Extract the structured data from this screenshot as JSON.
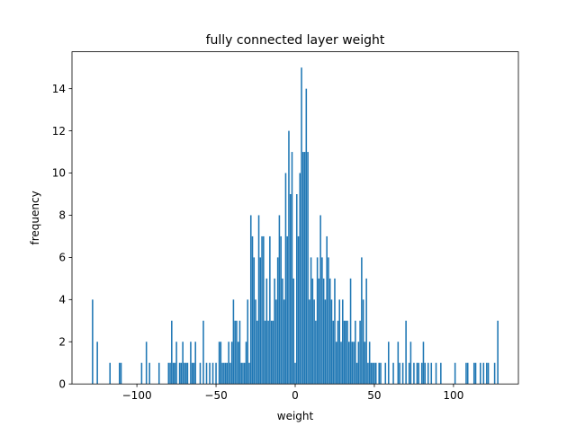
{
  "chart_data": {
    "type": "bar",
    "title": "fully connected layer weight",
    "xlabel": "weight",
    "ylabel": "frequency",
    "xlim": [
      -141,
      141
    ],
    "ylim": [
      0,
      15.75
    ],
    "xticks": [
      -100,
      -50,
      0,
      50,
      100
    ],
    "yticks": [
      0,
      2,
      4,
      6,
      8,
      10,
      12,
      14
    ],
    "bar_color": "#1f77b4",
    "bin_width": 1,
    "bins": [
      {
        "x": -128,
        "count": 4
      },
      {
        "x": -125,
        "count": 2
      },
      {
        "x": -117,
        "count": 1
      },
      {
        "x": -111,
        "count": 1
      },
      {
        "x": -110,
        "count": 1
      },
      {
        "x": -97,
        "count": 1
      },
      {
        "x": -94,
        "count": 2
      },
      {
        "x": -92,
        "count": 1
      },
      {
        "x": -86,
        "count": 1
      },
      {
        "x": -80,
        "count": 1
      },
      {
        "x": -79,
        "count": 1
      },
      {
        "x": -78,
        "count": 3
      },
      {
        "x": -77,
        "count": 1
      },
      {
        "x": -76,
        "count": 1
      },
      {
        "x": -75,
        "count": 2
      },
      {
        "x": -73,
        "count": 1
      },
      {
        "x": -72,
        "count": 1
      },
      {
        "x": -71,
        "count": 2
      },
      {
        "x": -70,
        "count": 1
      },
      {
        "x": -69,
        "count": 1
      },
      {
        "x": -68,
        "count": 1
      },
      {
        "x": -66,
        "count": 2
      },
      {
        "x": -65,
        "count": 1
      },
      {
        "x": -64,
        "count": 1
      },
      {
        "x": -63,
        "count": 2
      },
      {
        "x": -60,
        "count": 1
      },
      {
        "x": -58,
        "count": 3
      },
      {
        "x": -56,
        "count": 1
      },
      {
        "x": -54,
        "count": 1
      },
      {
        "x": -52,
        "count": 1
      },
      {
        "x": -50,
        "count": 1
      },
      {
        "x": -48,
        "count": 2
      },
      {
        "x": -47,
        "count": 2
      },
      {
        "x": -46,
        "count": 1
      },
      {
        "x": -45,
        "count": 1
      },
      {
        "x": -44,
        "count": 1
      },
      {
        "x": -43,
        "count": 1
      },
      {
        "x": -42,
        "count": 2
      },
      {
        "x": -41,
        "count": 1
      },
      {
        "x": -40,
        "count": 2
      },
      {
        "x": -39,
        "count": 4
      },
      {
        "x": -38,
        "count": 3
      },
      {
        "x": -37,
        "count": 3
      },
      {
        "x": -36,
        "count": 2
      },
      {
        "x": -35,
        "count": 3
      },
      {
        "x": -34,
        "count": 1
      },
      {
        "x": -33,
        "count": 1
      },
      {
        "x": -32,
        "count": 1
      },
      {
        "x": -31,
        "count": 2
      },
      {
        "x": -30,
        "count": 4
      },
      {
        "x": -29,
        "count": 1
      },
      {
        "x": -28,
        "count": 8
      },
      {
        "x": -27,
        "count": 7
      },
      {
        "x": -26,
        "count": 6
      },
      {
        "x": -25,
        "count": 4
      },
      {
        "x": -24,
        "count": 3
      },
      {
        "x": -23,
        "count": 8
      },
      {
        "x": -22,
        "count": 6
      },
      {
        "x": -21,
        "count": 7
      },
      {
        "x": -20,
        "count": 7
      },
      {
        "x": -19,
        "count": 3
      },
      {
        "x": -18,
        "count": 5
      },
      {
        "x": -17,
        "count": 3
      },
      {
        "x": -16,
        "count": 7
      },
      {
        "x": -15,
        "count": 3
      },
      {
        "x": -14,
        "count": 3
      },
      {
        "x": -13,
        "count": 5
      },
      {
        "x": -12,
        "count": 4
      },
      {
        "x": -11,
        "count": 6
      },
      {
        "x": -10,
        "count": 8
      },
      {
        "x": -9,
        "count": 7
      },
      {
        "x": -8,
        "count": 5
      },
      {
        "x": -7,
        "count": 4
      },
      {
        "x": -6,
        "count": 10
      },
      {
        "x": -5,
        "count": 7
      },
      {
        "x": -4,
        "count": 12
      },
      {
        "x": -3,
        "count": 9
      },
      {
        "x": -2,
        "count": 11
      },
      {
        "x": -1,
        "count": 5
      },
      {
        "x": 0,
        "count": 1
      },
      {
        "x": 1,
        "count": 9
      },
      {
        "x": 2,
        "count": 7
      },
      {
        "x": 3,
        "count": 10
      },
      {
        "x": 4,
        "count": 15
      },
      {
        "x": 5,
        "count": 11
      },
      {
        "x": 6,
        "count": 11
      },
      {
        "x": 7,
        "count": 14
      },
      {
        "x": 8,
        "count": 11
      },
      {
        "x": 9,
        "count": 4
      },
      {
        "x": 10,
        "count": 6
      },
      {
        "x": 11,
        "count": 5
      },
      {
        "x": 12,
        "count": 4
      },
      {
        "x": 13,
        "count": 3
      },
      {
        "x": 14,
        "count": 6
      },
      {
        "x": 15,
        "count": 5
      },
      {
        "x": 16,
        "count": 8
      },
      {
        "x": 17,
        "count": 6
      },
      {
        "x": 18,
        "count": 5
      },
      {
        "x": 19,
        "count": 4
      },
      {
        "x": 20,
        "count": 7
      },
      {
        "x": 21,
        "count": 6
      },
      {
        "x": 22,
        "count": 5
      },
      {
        "x": 23,
        "count": 4
      },
      {
        "x": 24,
        "count": 3
      },
      {
        "x": 25,
        "count": 5
      },
      {
        "x": 26,
        "count": 2
      },
      {
        "x": 27,
        "count": 3
      },
      {
        "x": 28,
        "count": 4
      },
      {
        "x": 29,
        "count": 2
      },
      {
        "x": 30,
        "count": 4
      },
      {
        "x": 31,
        "count": 3
      },
      {
        "x": 32,
        "count": 3
      },
      {
        "x": 33,
        "count": 3
      },
      {
        "x": 34,
        "count": 2
      },
      {
        "x": 35,
        "count": 5
      },
      {
        "x": 36,
        "count": 2
      },
      {
        "x": 37,
        "count": 2
      },
      {
        "x": 38,
        "count": 3
      },
      {
        "x": 39,
        "count": 1
      },
      {
        "x": 40,
        "count": 2
      },
      {
        "x": 41,
        "count": 3
      },
      {
        "x": 42,
        "count": 6
      },
      {
        "x": 43,
        "count": 4
      },
      {
        "x": 44,
        "count": 2
      },
      {
        "x": 45,
        "count": 5
      },
      {
        "x": 46,
        "count": 1
      },
      {
        "x": 47,
        "count": 2
      },
      {
        "x": 48,
        "count": 1
      },
      {
        "x": 49,
        "count": 1
      },
      {
        "x": 50,
        "count": 1
      },
      {
        "x": 51,
        "count": 1
      },
      {
        "x": 53,
        "count": 1
      },
      {
        "x": 54,
        "count": 1
      },
      {
        "x": 57,
        "count": 1
      },
      {
        "x": 59,
        "count": 2
      },
      {
        "x": 62,
        "count": 1
      },
      {
        "x": 65,
        "count": 2
      },
      {
        "x": 66,
        "count": 1
      },
      {
        "x": 68,
        "count": 1
      },
      {
        "x": 70,
        "count": 3
      },
      {
        "x": 72,
        "count": 1
      },
      {
        "x": 73,
        "count": 2
      },
      {
        "x": 75,
        "count": 1
      },
      {
        "x": 77,
        "count": 1
      },
      {
        "x": 78,
        "count": 1
      },
      {
        "x": 80,
        "count": 1
      },
      {
        "x": 81,
        "count": 2
      },
      {
        "x": 82,
        "count": 1
      },
      {
        "x": 84,
        "count": 1
      },
      {
        "x": 86,
        "count": 1
      },
      {
        "x": 89,
        "count": 1
      },
      {
        "x": 92,
        "count": 1
      },
      {
        "x": 101,
        "count": 1
      },
      {
        "x": 108,
        "count": 1
      },
      {
        "x": 109,
        "count": 1
      },
      {
        "x": 113,
        "count": 1
      },
      {
        "x": 114,
        "count": 1
      },
      {
        "x": 117,
        "count": 1
      },
      {
        "x": 119,
        "count": 1
      },
      {
        "x": 121,
        "count": 1
      },
      {
        "x": 122,
        "count": 1
      },
      {
        "x": 126,
        "count": 1
      },
      {
        "x": 128,
        "count": 3
      }
    ]
  }
}
